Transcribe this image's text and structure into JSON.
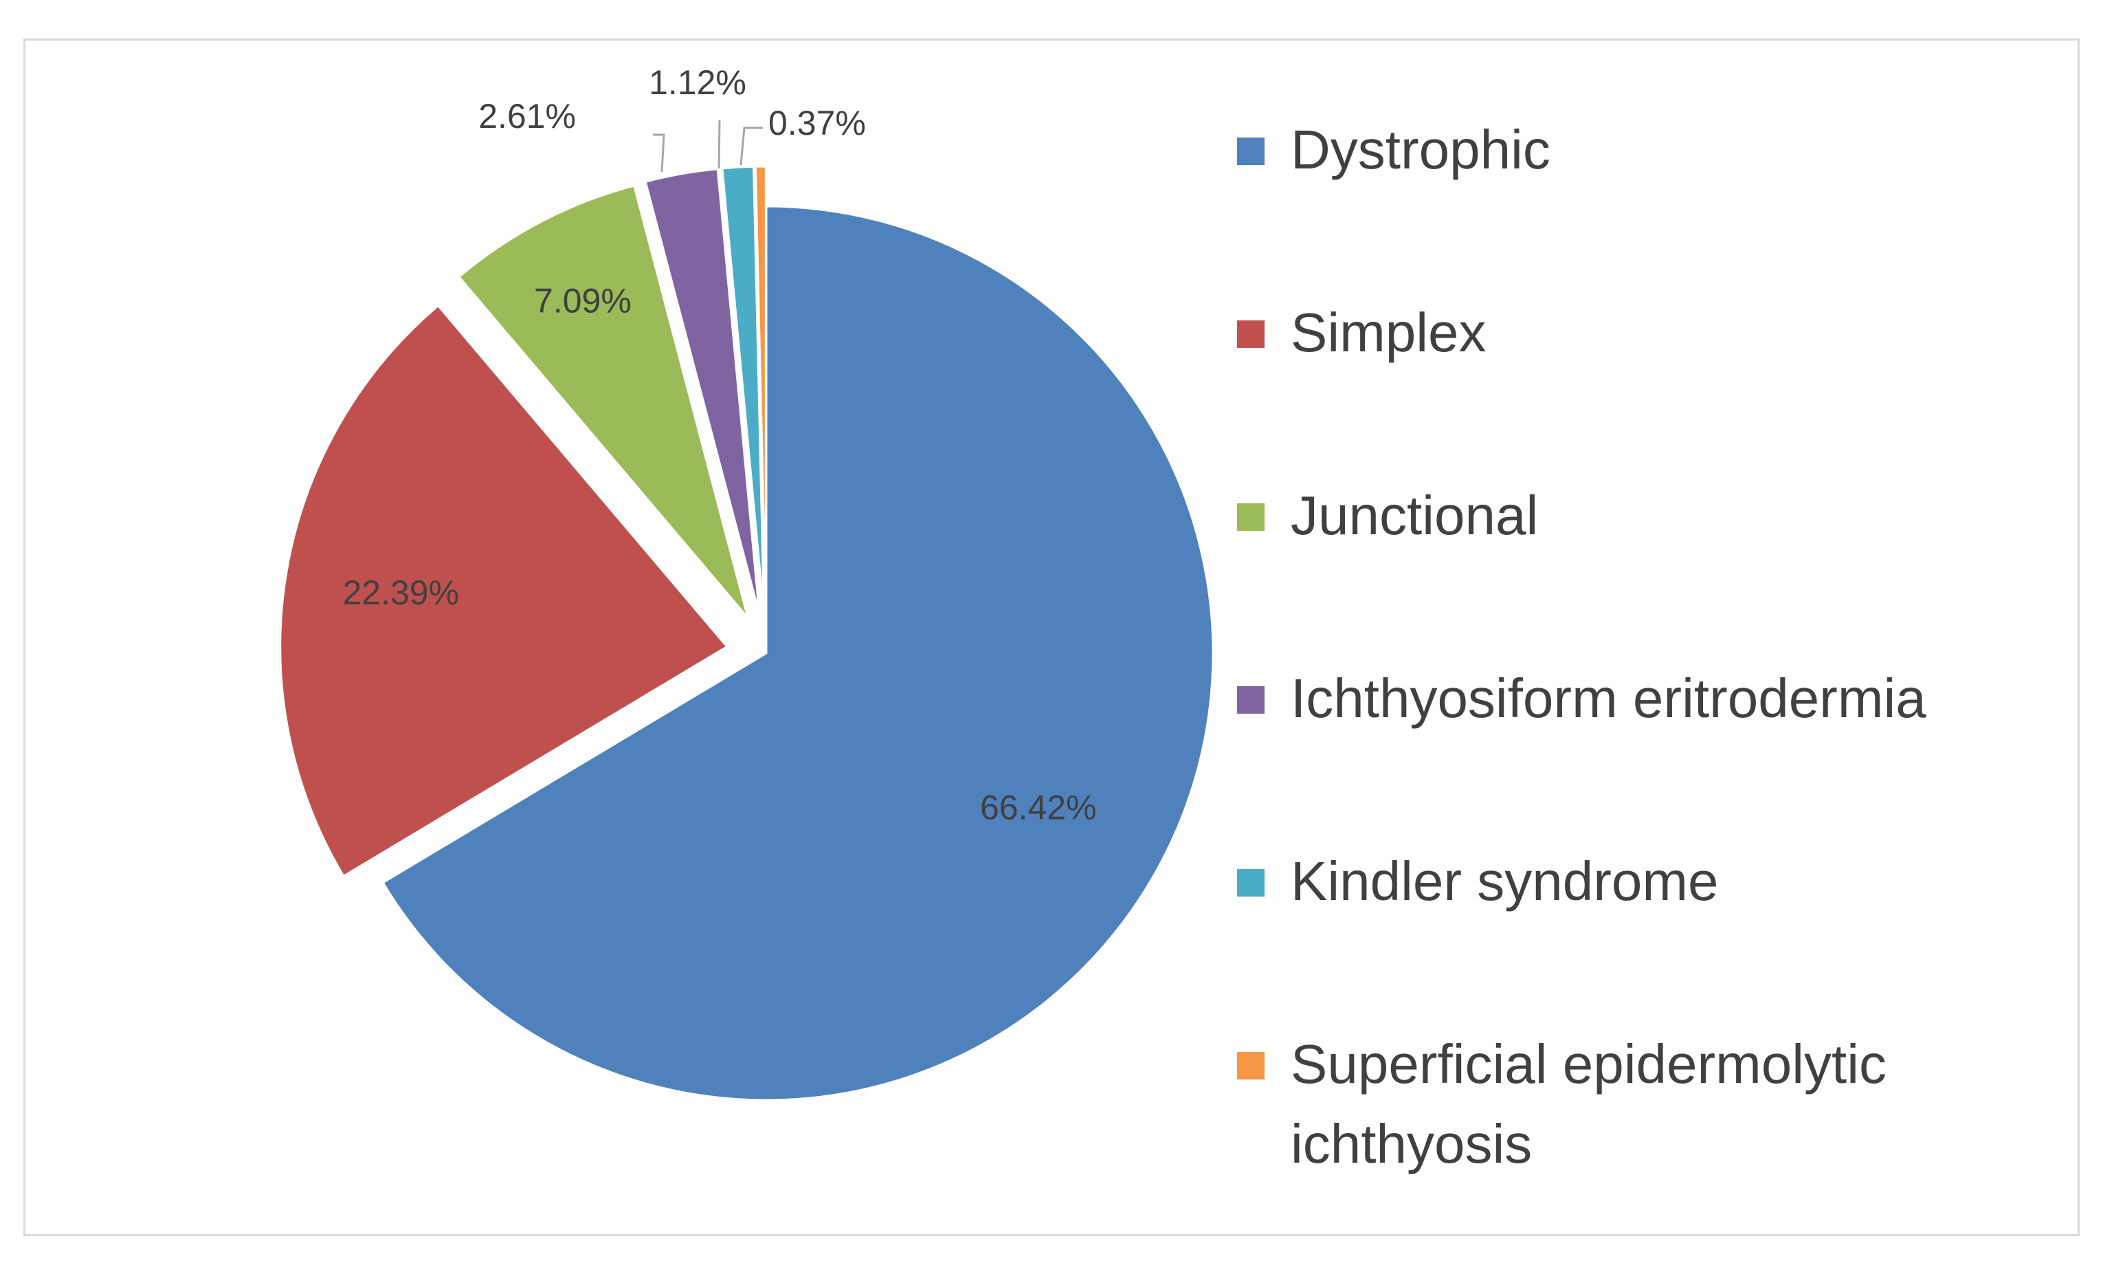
{
  "chart_data": {
    "type": "pie",
    "title": "",
    "categories": [
      "Dystrophic",
      "Simplex",
      "Junctional",
      "Ichthyosiform eritrodermia",
      "Kindler syndrome",
      "Superficial epidermolytic ichthyosis"
    ],
    "values": [
      66.42,
      22.39,
      7.09,
      2.61,
      1.12,
      0.37
    ],
    "labels": [
      "66.42%",
      "22.39%",
      "7.09%",
      "2.61%",
      "1.12%",
      "0.37%"
    ],
    "colors": [
      "#4f81bd",
      "#c0504d",
      "#9bbb59",
      "#8064a2",
      "#4bacc6",
      "#f79646"
    ],
    "exploded": true,
    "legend_position": "right"
  }
}
